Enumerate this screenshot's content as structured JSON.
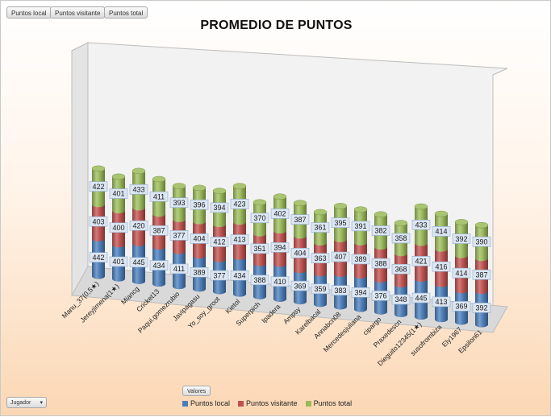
{
  "field_buttons": [
    "Puntos local",
    "Puntos visitante",
    "Puntos total"
  ],
  "values_button": "Valores",
  "filter_button": {
    "label": "Jugador",
    "icon": "dropdown-arrow-icon"
  },
  "colors": {
    "local": "#4a7ebb",
    "visitante": "#c0504d",
    "total": "#9bbb59"
  },
  "chart_data": {
    "type": "bar",
    "stacked": true,
    "style": "3d-cylinder",
    "title": "PROMEDIO DE PUNTOS",
    "xlabel": "",
    "ylabel": "",
    "categories": [
      "Manu_37(0,5★)",
      "Jereyjimena(1★)",
      "Miancg",
      "Cricket13",
      "Paqui.gomezrubio",
      "Javipagasu",
      "Yo_soy_groot",
      "Kietol",
      "Superpich",
      "Ipadera",
      "Ampsy",
      "Karelbacal",
      "Annabcn08",
      "Mercedesjuliana",
      "cipargo",
      "Praxedescn",
      "Dieguito12345(1★)",
      "susofrombiza",
      "Ely1967",
      "Epsilon61"
    ],
    "series": [
      {
        "name": "Puntos local",
        "values": [
          442,
          401,
          445,
          434,
          411,
          389,
          377,
          434,
          388,
          410,
          369,
          359,
          383,
          394,
          376,
          348,
          445,
          413,
          369,
          392
        ]
      },
      {
        "name": "Puntos visitante",
        "values": [
          403,
          400,
          420,
          387,
          377,
          404,
          412,
          413,
          351,
          394,
          404,
          363,
          407,
          389,
          388,
          368,
          421,
          416,
          414,
          387
        ]
      },
      {
        "name": "Puntos total",
        "values": [
          422,
          401,
          433,
          411,
          393,
          396,
          394,
          423,
          370,
          402,
          387,
          361,
          395,
          391,
          382,
          358,
          433,
          414,
          392,
          390
        ]
      }
    ],
    "legend": {
      "position": "bottom",
      "entries": [
        "Puntos local",
        "Puntos visitante",
        "Puntos total"
      ]
    }
  }
}
